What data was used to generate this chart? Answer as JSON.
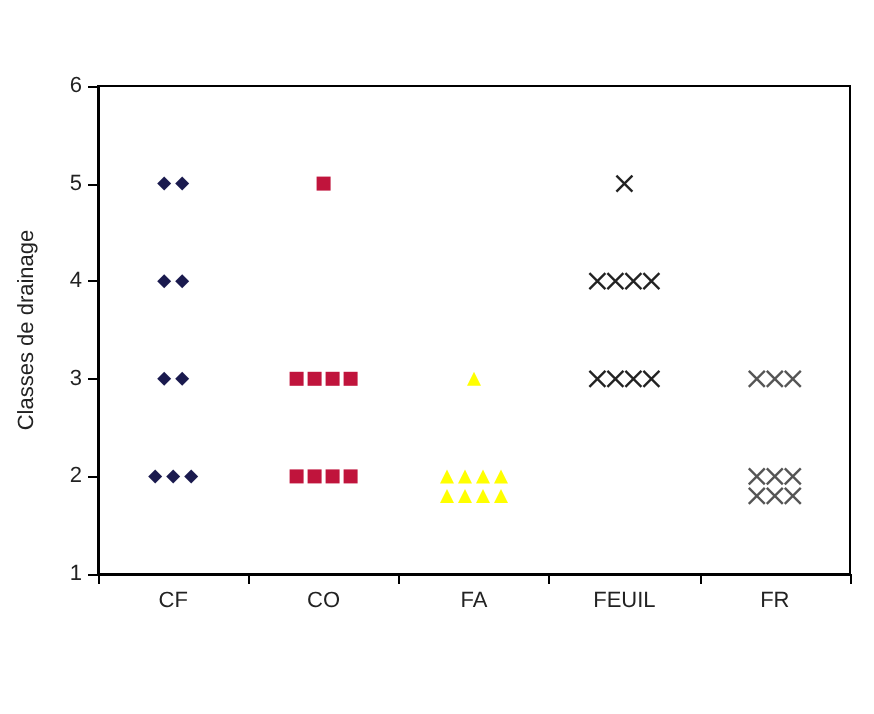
{
  "chart_data": {
    "type": "scatter",
    "ylabel": "Classes de drainage",
    "categories": [
      "CF",
      "CO",
      "FA",
      "FEUIL",
      "FR"
    ],
    "ylim": [
      1,
      6
    ],
    "yticks": [
      1,
      2,
      3,
      4,
      5,
      6
    ],
    "series": [
      {
        "color": "#1a1a4e",
        "marker": "diamond",
        "x": [
          "CF",
          "CF",
          "CF",
          "CF",
          "CF",
          "CF",
          "CF",
          "CF",
          "CF"
        ],
        "values": [
          5,
          5,
          4,
          4,
          3,
          3,
          2,
          2,
          2
        ]
      },
      {
        "color": "#c0143c",
        "marker": "square",
        "x": [
          "CO",
          "CO",
          "CO",
          "CO",
          "CO",
          "CO",
          "CO",
          "CO",
          "CO"
        ],
        "values": [
          5,
          3,
          3,
          3,
          3,
          2,
          2,
          2,
          2
        ]
      },
      {
        "color": "#ffff00",
        "marker": "triangle",
        "x": [
          "FA",
          "FA",
          "FA",
          "FA",
          "FA",
          "FA",
          "FA",
          "FA",
          "FA"
        ],
        "values": [
          3,
          2,
          2,
          2,
          2,
          1.8,
          1.8,
          1.8,
          1.8
        ]
      },
      {
        "color": "#222222",
        "marker": "cross",
        "x": [
          "FEUIL",
          "FEUIL",
          "FEUIL",
          "FEUIL",
          "FEUIL",
          "FEUIL",
          "FEUIL",
          "FEUIL",
          "FEUIL"
        ],
        "values": [
          5,
          4,
          4,
          4,
          4,
          3,
          3,
          3,
          3
        ]
      },
      {
        "color": "#555555",
        "marker": "cross",
        "x": [
          "FR",
          "FR",
          "FR",
          "FR",
          "FR",
          "FR",
          "FR",
          "FR",
          "FR"
        ],
        "values": [
          3,
          3,
          3,
          2,
          2,
          2,
          1.8,
          1.8,
          1.8
        ]
      }
    ]
  }
}
